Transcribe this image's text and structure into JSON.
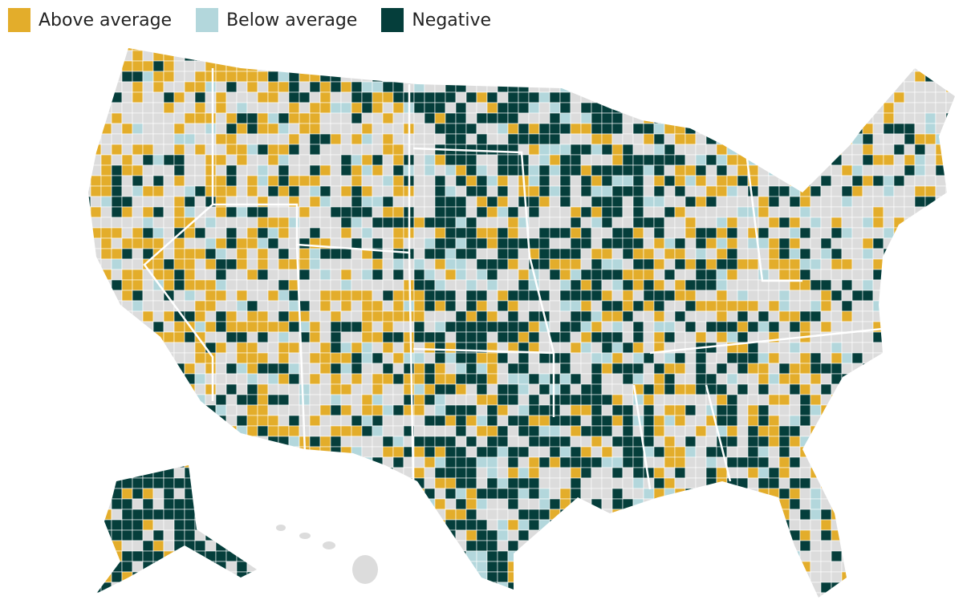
{
  "legend": [
    {
      "label": "Above average",
      "color": "#e3ad2b"
    },
    {
      "label": "Below average",
      "color": "#b3d7dc"
    },
    {
      "label": "Negative",
      "color": "#053e3b"
    }
  ]
}
